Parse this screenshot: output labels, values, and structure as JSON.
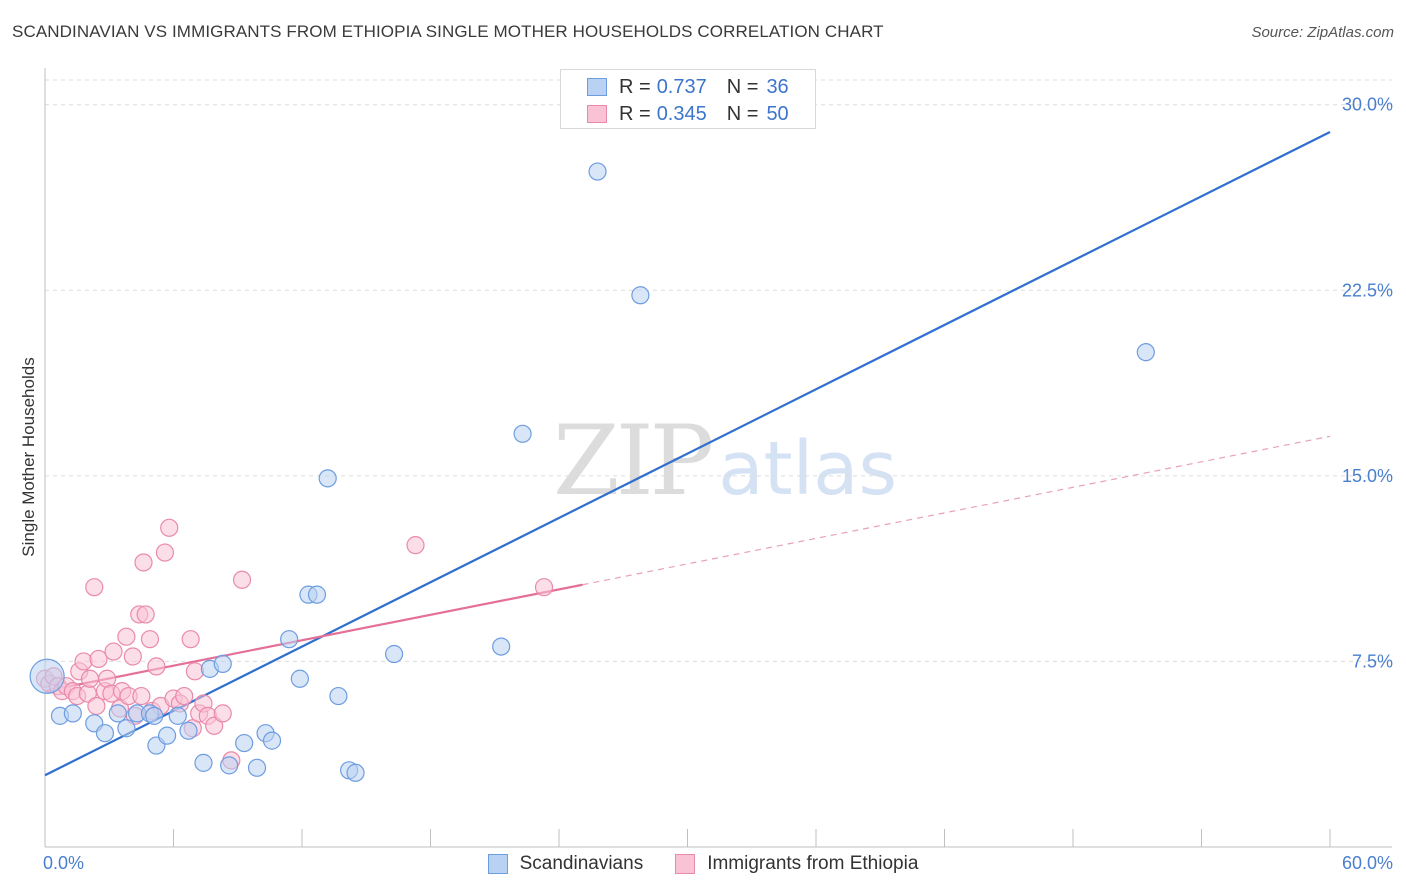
{
  "header": {
    "title": "SCANDINAVIAN VS IMMIGRANTS FROM ETHIOPIA SINGLE MOTHER HOUSEHOLDS CORRELATION CHART",
    "source": "Source: ZipAtlas.com"
  },
  "watermark": {
    "zip": "ZIP",
    "atlas": "atlas"
  },
  "legend": {
    "r_label": "R =",
    "n_label": "N =",
    "series": [
      {
        "name": "Scandinavians",
        "r": "0.737",
        "n": "36",
        "fill": "#b9d2f3",
        "stroke": "#6d9de0"
      },
      {
        "name": "Immigrants from Ethiopia",
        "r": "0.345",
        "n": "50",
        "fill": "#f9c3d5",
        "stroke": "#e98aab"
      }
    ]
  },
  "chart_data": {
    "type": "scatter",
    "title": "SCANDINAVIAN VS IMMIGRANTS FROM ETHIOPIA SINGLE MOTHER HOUSEHOLDS CORRELATION CHART",
    "xlabel": "",
    "ylabel": "Single Mother Households",
    "xlim": [
      0,
      60
    ],
    "ylim": [
      0,
      31
    ],
    "x_tick_labels": [
      "0.0%",
      "60.0%"
    ],
    "y_ticks": [
      7.5,
      15.0,
      22.5,
      30.0
    ],
    "y_tick_labels": [
      "7.5%",
      "15.0%",
      "22.5%",
      "30.0%"
    ],
    "grid": true,
    "series": [
      {
        "name": "Scandinavians",
        "color": "#3d74cc",
        "points": [
          [
            0.1,
            6.9
          ],
          [
            0.7,
            5.3
          ],
          [
            1.3,
            5.4
          ],
          [
            2.3,
            5.0
          ],
          [
            2.8,
            4.6
          ],
          [
            3.4,
            5.4
          ],
          [
            3.8,
            4.8
          ],
          [
            4.3,
            5.4
          ],
          [
            4.9,
            5.4
          ],
          [
            5.1,
            5.3
          ],
          [
            5.2,
            4.1
          ],
          [
            5.7,
            4.5
          ],
          [
            6.2,
            5.3
          ],
          [
            6.7,
            4.7
          ],
          [
            7.4,
            3.4
          ],
          [
            7.7,
            7.2
          ],
          [
            8.3,
            7.4
          ],
          [
            8.6,
            3.3
          ],
          [
            9.3,
            4.2
          ],
          [
            9.9,
            3.2
          ],
          [
            10.3,
            4.6
          ],
          [
            10.6,
            4.3
          ],
          [
            11.4,
            8.4
          ],
          [
            11.9,
            6.8
          ],
          [
            12.3,
            10.2
          ],
          [
            12.7,
            10.2
          ],
          [
            13.2,
            14.9
          ],
          [
            13.7,
            6.1
          ],
          [
            14.2,
            3.1
          ],
          [
            14.5,
            3.0
          ],
          [
            16.3,
            7.8
          ],
          [
            21.3,
            8.1
          ],
          [
            22.3,
            16.7
          ],
          [
            25.8,
            27.3
          ],
          [
            27.8,
            22.3
          ],
          [
            51.4,
            20.0
          ]
        ],
        "trend": {
          "x": [
            0,
            60
          ],
          "y": [
            2.9,
            28.9
          ]
        }
      },
      {
        "name": "Immigrants from Ethiopia",
        "color": "#e46f98",
        "points": [
          [
            0.0,
            6.8
          ],
          [
            0.2,
            6.6
          ],
          [
            0.4,
            6.9
          ],
          [
            0.6,
            6.5
          ],
          [
            0.8,
            6.3
          ],
          [
            1.0,
            6.5
          ],
          [
            1.3,
            6.3
          ],
          [
            1.5,
            6.1
          ],
          [
            1.6,
            7.1
          ],
          [
            1.8,
            7.5
          ],
          [
            2.0,
            6.2
          ],
          [
            2.1,
            6.8
          ],
          [
            2.3,
            10.5
          ],
          [
            2.4,
            5.7
          ],
          [
            2.5,
            7.6
          ],
          [
            2.8,
            6.3
          ],
          [
            2.9,
            6.8
          ],
          [
            3.1,
            6.2
          ],
          [
            3.2,
            7.9
          ],
          [
            3.5,
            5.6
          ],
          [
            3.6,
            6.3
          ],
          [
            3.8,
            8.5
          ],
          [
            3.9,
            6.1
          ],
          [
            4.1,
            7.7
          ],
          [
            4.2,
            5.3
          ],
          [
            4.4,
            9.4
          ],
          [
            4.5,
            6.1
          ],
          [
            4.6,
            11.5
          ],
          [
            4.7,
            9.4
          ],
          [
            4.9,
            8.4
          ],
          [
            5.0,
            5.5
          ],
          [
            5.2,
            7.3
          ],
          [
            5.4,
            5.7
          ],
          [
            5.6,
            11.9
          ],
          [
            5.8,
            12.9
          ],
          [
            6.0,
            6.0
          ],
          [
            6.3,
            5.8
          ],
          [
            6.5,
            6.1
          ],
          [
            6.8,
            8.4
          ],
          [
            6.9,
            4.8
          ],
          [
            7.0,
            7.1
          ],
          [
            7.2,
            5.4
          ],
          [
            7.4,
            5.8
          ],
          [
            7.6,
            5.3
          ],
          [
            7.9,
            4.9
          ],
          [
            8.3,
            5.4
          ],
          [
            8.7,
            3.5
          ],
          [
            9.2,
            10.8
          ],
          [
            17.3,
            12.2
          ],
          [
            23.3,
            10.5
          ]
        ],
        "trend": {
          "x": [
            0,
            25.1
          ],
          "y": [
            6.3,
            10.6
          ]
        },
        "trend_extension": {
          "x": [
            25.1,
            60
          ],
          "y": [
            10.6,
            16.6
          ]
        }
      }
    ]
  }
}
